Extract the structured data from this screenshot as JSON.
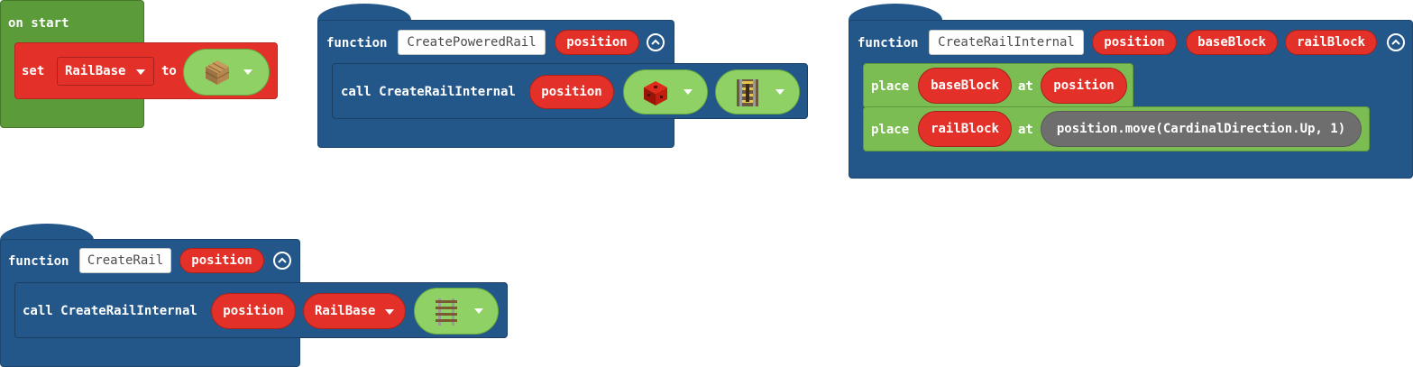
{
  "on_start": {
    "title": "on start",
    "set_label": "set",
    "variable": "RailBase",
    "to_label": "to",
    "block_icon": "oak-planks-icon"
  },
  "func_powered": {
    "keyword": "function",
    "name": "CreatePoweredRail",
    "param": "position",
    "call_label": "call CreateRailInternal",
    "arg1": "position",
    "arg2_icon": "redstone-block-icon",
    "arg3_icon": "powered-rail-icon"
  },
  "func_internal": {
    "keyword": "function",
    "name": "CreateRailInternal",
    "params": [
      "position",
      "baseBlock",
      "railBlock"
    ],
    "place1": {
      "place": "place",
      "what": "baseBlock",
      "at": "at",
      "where": "position"
    },
    "place2": {
      "place": "place",
      "what": "railBlock",
      "at": "at",
      "where": "position.move(CardinalDirection.Up, 1)"
    }
  },
  "func_rail": {
    "keyword": "function",
    "name": "CreateRail",
    "param": "position",
    "call_label": "call CreateRailInternal",
    "arg1": "position",
    "arg2": "RailBase",
    "arg3_icon": "rail-icon"
  },
  "colors": {
    "event": "#5c9b3a",
    "function": "#23578a",
    "variable": "#e3312a",
    "blocks": "#7bbd52",
    "positions": "#6e6e6e"
  }
}
